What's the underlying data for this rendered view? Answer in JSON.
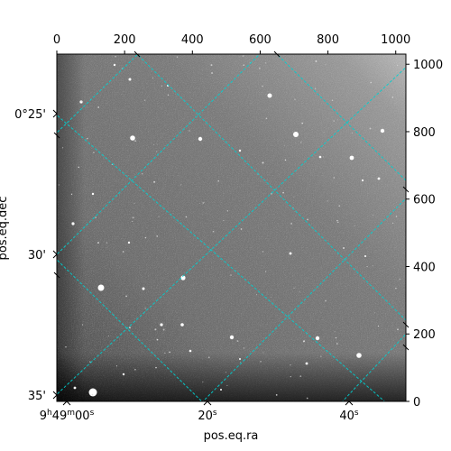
{
  "figure": {
    "xlabel": "pos.eq.ra",
    "ylabel": "pos.eq.dec",
    "pixel_axes": {
      "x_ticks": [
        0,
        200,
        400,
        600,
        800,
        1000
      ],
      "y_ticks": [
        0,
        200,
        400,
        600,
        800,
        1000
      ],
      "x_range": [
        0,
        1030
      ],
      "y_range": [
        0,
        1030
      ]
    },
    "ra_ticks": [
      {
        "label_main": "9",
        "sup1": "h",
        "mid": "49",
        "sup2": "m",
        "tail": "00",
        "sup3": "s"
      },
      {
        "label_main": "20",
        "sup1": "s"
      },
      {
        "label_main": "40",
        "sup1": "s"
      }
    ],
    "dec_ticks": [
      "0°25'",
      "30'",
      "35'"
    ],
    "grid_color": "#00d0d0",
    "image": {
      "type": "grayscale star field",
      "background_color": "#7a7a7a"
    }
  }
}
